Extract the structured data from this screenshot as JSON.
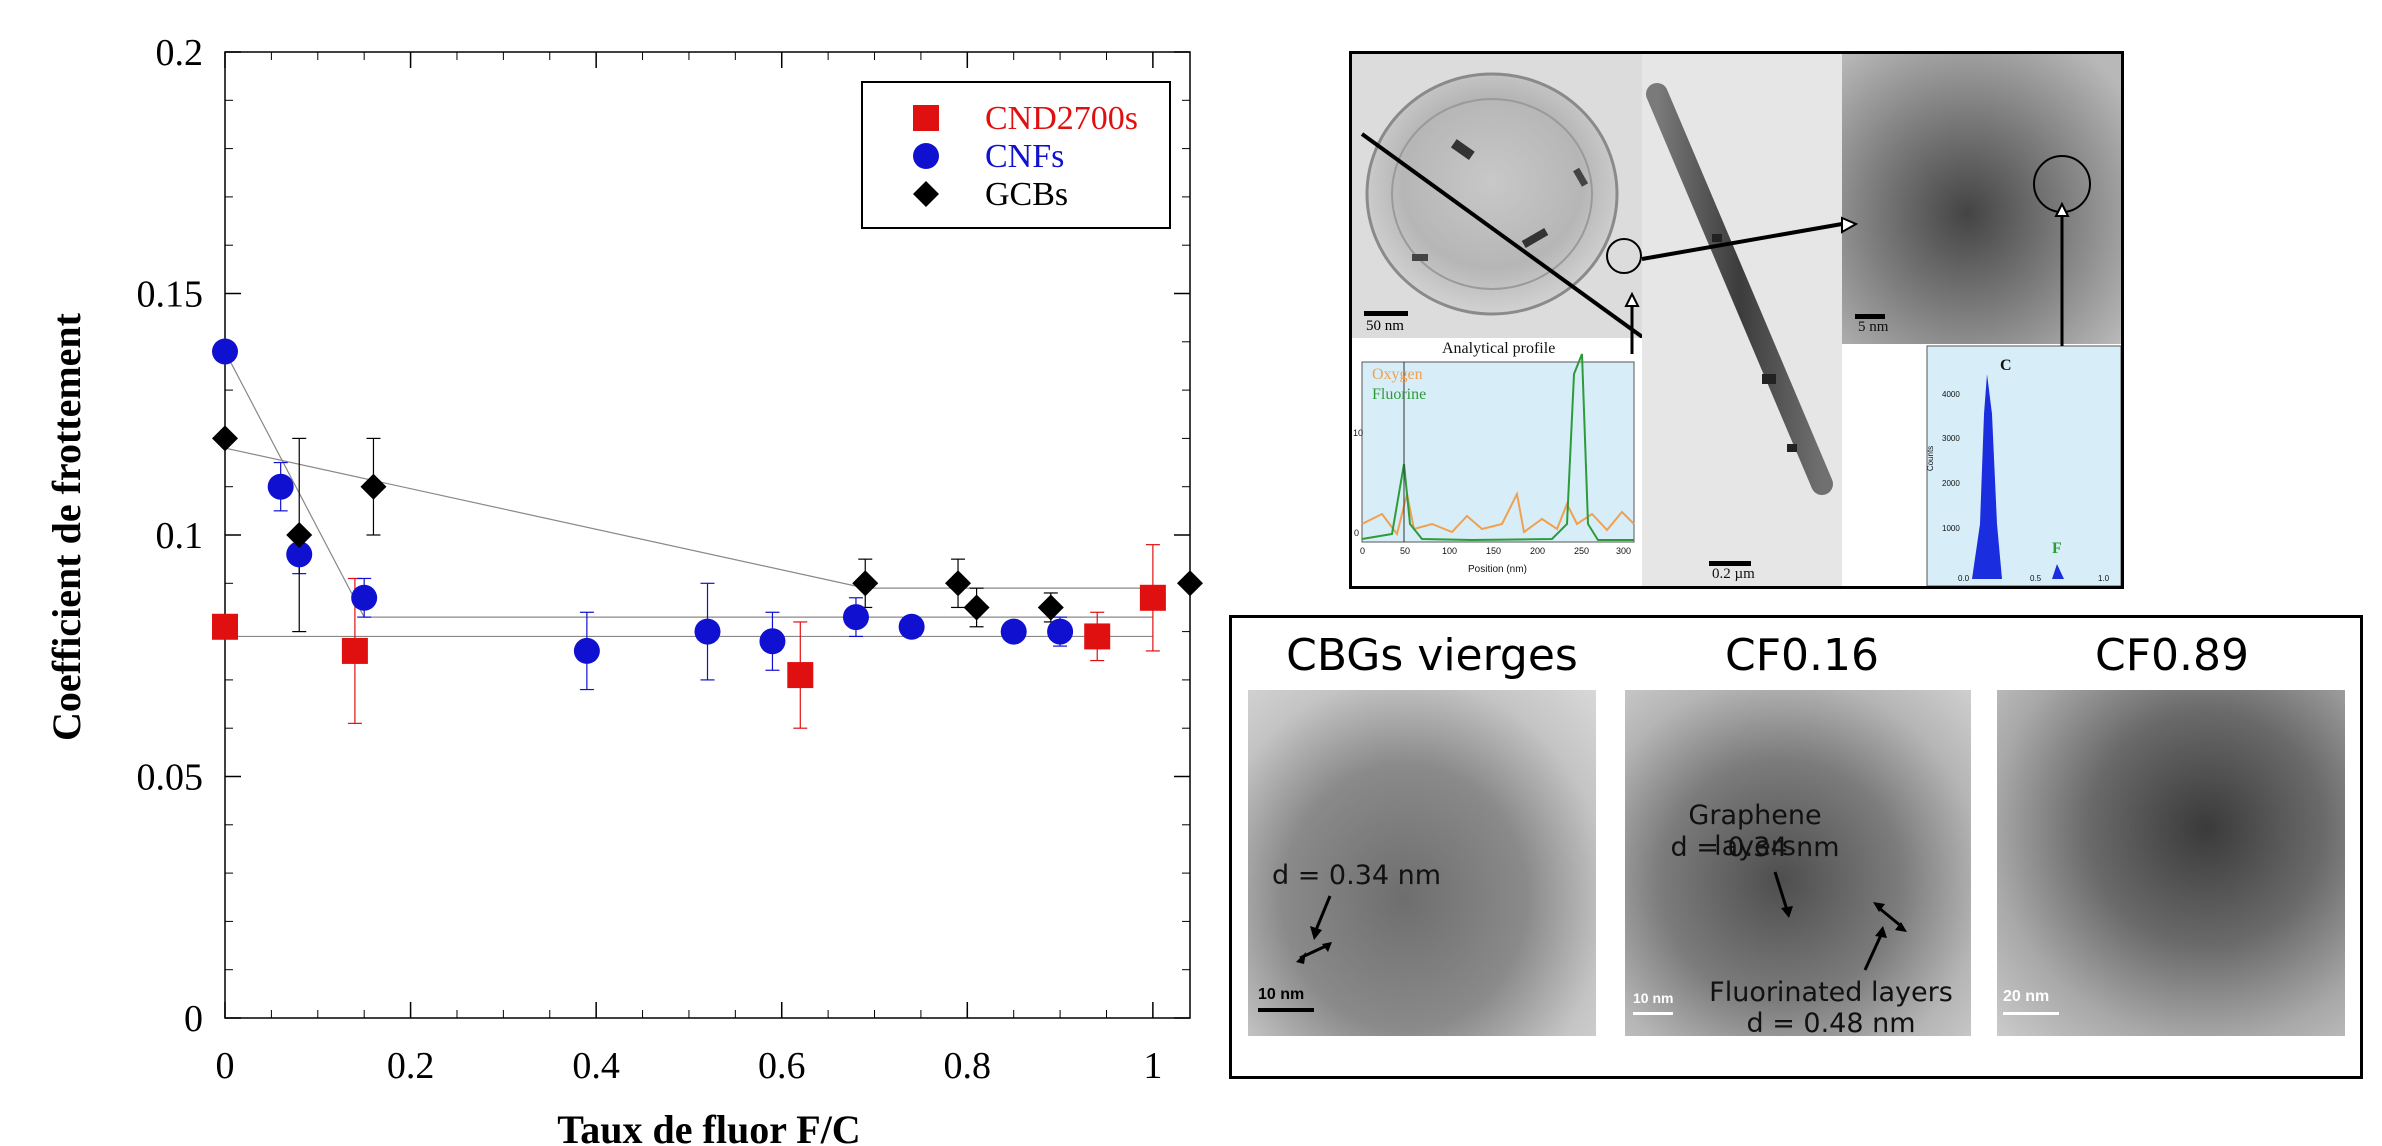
{
  "chart_data": {
    "type": "scatter",
    "xlabel": "Taux de fluor F/C",
    "ylabel": "Coefficient de frottement",
    "xlim": [
      0,
      1.04
    ],
    "ylim": [
      0,
      0.2
    ],
    "xticks": [
      "0",
      "0.2",
      "0.4",
      "0.6",
      "0.8",
      "1"
    ],
    "yticks": [
      "0",
      "0.05",
      "0.1",
      "0.15",
      "0.2"
    ],
    "legend_position": "top-right",
    "series": [
      {
        "name": "CND2700s",
        "marker": "square",
        "color": "#e01010",
        "points": [
          {
            "x": 0.0,
            "y": 0.081
          },
          {
            "x": 0.14,
            "y": 0.076,
            "err": 0.015
          },
          {
            "x": 0.62,
            "y": 0.071,
            "err": 0.011
          },
          {
            "x": 0.94,
            "y": 0.079,
            "err": 0.005
          },
          {
            "x": 1.0,
            "y": 0.087,
            "err": 0.011
          }
        ]
      },
      {
        "name": "CNFs",
        "marker": "circle",
        "color": "#1010d0",
        "points": [
          {
            "x": 0.0,
            "y": 0.138
          },
          {
            "x": 0.06,
            "y": 0.11,
            "err": 0.005
          },
          {
            "x": 0.08,
            "y": 0.096,
            "err": 0.004
          },
          {
            "x": 0.15,
            "y": 0.087,
            "err": 0.004
          },
          {
            "x": 0.39,
            "y": 0.076,
            "err": 0.008
          },
          {
            "x": 0.52,
            "y": 0.08,
            "err": 0.01
          },
          {
            "x": 0.59,
            "y": 0.078,
            "err": 0.006
          },
          {
            "x": 0.68,
            "y": 0.083,
            "err": 0.004
          },
          {
            "x": 0.74,
            "y": 0.081
          },
          {
            "x": 0.85,
            "y": 0.08
          },
          {
            "x": 0.9,
            "y": 0.08,
            "err": 0.003
          }
        ]
      },
      {
        "name": "GCBs",
        "marker": "diamond",
        "color": "#000000",
        "points": [
          {
            "x": 0.0,
            "y": 0.12
          },
          {
            "x": 0.08,
            "y": 0.1,
            "err": 0.02
          },
          {
            "x": 0.16,
            "y": 0.11,
            "err": 0.01
          },
          {
            "x": 0.69,
            "y": 0.09,
            "err": 0.005
          },
          {
            "x": 0.79,
            "y": 0.09,
            "err": 0.005
          },
          {
            "x": 0.81,
            "y": 0.085,
            "err": 0.004
          },
          {
            "x": 0.89,
            "y": 0.085,
            "err": 0.003
          },
          {
            "x": 1.04,
            "y": 0.09
          }
        ]
      }
    ],
    "trend_lines": [
      {
        "series": "CNFs",
        "points": [
          [
            0.0,
            0.138
          ],
          [
            0.15,
            0.083
          ],
          [
            1.0,
            0.083
          ]
        ]
      },
      {
        "series": "GCBs",
        "points": [
          [
            0.0,
            0.118
          ],
          [
            0.69,
            0.089
          ],
          [
            1.0,
            0.089
          ]
        ]
      },
      {
        "series": "CND2700s",
        "points": [
          [
            0.0,
            0.079
          ],
          [
            1.0,
            0.079
          ]
        ]
      }
    ]
  },
  "top_panel": {
    "scale_50nm": "50 nm",
    "scale_02um": "0.2 µm",
    "scale_5nm": "5 nm",
    "profile_title": "Analytical profile",
    "profile_legend": [
      "Oxygen",
      "Fluorine"
    ],
    "profile_xlabel": "Position (nm)",
    "profile_xticks": [
      "0",
      "50",
      "100",
      "150",
      "200",
      "250",
      "300"
    ],
    "profile_yticks": [
      "0",
      "10"
    ],
    "eds_labels": {
      "c": "C",
      "f": "F",
      "ylabel": "Counts"
    },
    "eds_yticks": [
      "1000",
      "2000",
      "3000",
      "4000"
    ],
    "eds_xticks": [
      "0.0",
      "0.5",
      "1.0"
    ],
    "colors": {
      "oxygen": "#f0a050",
      "fluorine": "#2e9b3a",
      "eds_fill": "#1a2ee0",
      "profile_bg": "#d7eef8"
    }
  },
  "bottom_panel": {
    "tiles": [
      {
        "title": "CBGs vierges",
        "scale": "10 nm",
        "captions": [
          "d = 0.34 nm"
        ]
      },
      {
        "title": "CF0.16",
        "scale": "10 nm",
        "captions": [
          "Graphene layers",
          "d = 0.34 nm",
          "Fluorinated layers",
          "d = 0.48 nm"
        ]
      },
      {
        "title": "CF0.89",
        "scale": "20 nm",
        "captions": []
      }
    ]
  }
}
